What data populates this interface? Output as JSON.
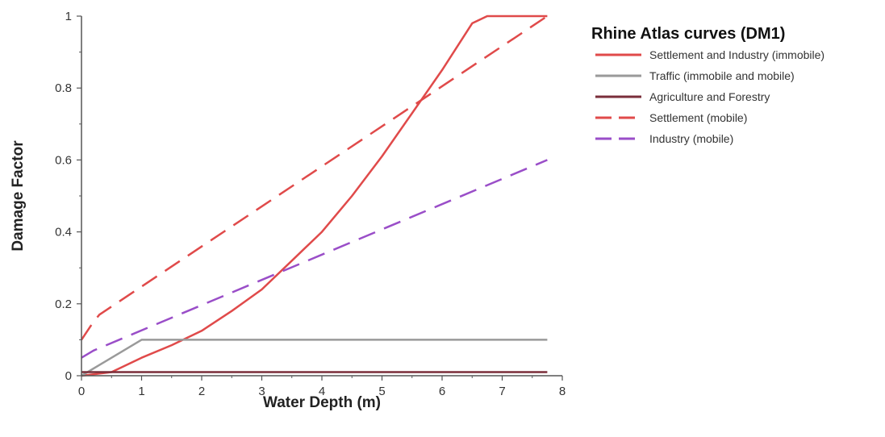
{
  "chart_data": {
    "type": "line",
    "title": "",
    "xlabel": "Water Depth (m)",
    "ylabel": "Damage Factor",
    "xlim": [
      0,
      8
    ],
    "ylim": [
      0,
      1
    ],
    "xticks": [
      "0",
      "1",
      "2",
      "3",
      "4",
      "5",
      "6",
      "7",
      "8"
    ],
    "yticks": [
      "0",
      "0.2",
      "0.4",
      "0.6",
      "0.8",
      "1"
    ],
    "grid": false,
    "legend": {
      "title": "Rhine Atlas curves (DM1)",
      "position": "top-right"
    },
    "series": [
      {
        "name": "Settlement and Industry (immobile)",
        "color": "#e04a4a",
        "dash": "solid",
        "x": [
          0,
          0.5,
          1,
          1.5,
          2,
          2.5,
          3,
          3.5,
          4,
          4.5,
          5,
          5.5,
          6,
          6.5,
          6.75,
          7.75
        ],
        "y": [
          0,
          0.01,
          0.05,
          0.085,
          0.125,
          0.18,
          0.24,
          0.32,
          0.4,
          0.5,
          0.61,
          0.73,
          0.85,
          0.98,
          1.0,
          1.0
        ]
      },
      {
        "name": "Traffic (immobile and mobile)",
        "color": "#9a9a9a",
        "dash": "solid",
        "x": [
          0,
          1,
          7.75
        ],
        "y": [
          0,
          0.1,
          0.1
        ]
      },
      {
        "name": "Agriculture and Forestry",
        "color": "#7a2e3a",
        "dash": "solid",
        "x": [
          0,
          7.75
        ],
        "y": [
          0.01,
          0.01
        ]
      },
      {
        "name": "Settlement (mobile)",
        "color": "#e04a4a",
        "dash": "dashed",
        "x": [
          0,
          0.2,
          0.3,
          7.75
        ],
        "y": [
          0.1,
          0.15,
          0.17,
          1.0
        ]
      },
      {
        "name": "Industry (mobile)",
        "color": "#9a4ec8",
        "dash": "dashed",
        "x": [
          0,
          0.2,
          7.75
        ],
        "y": [
          0.05,
          0.07,
          0.6
        ]
      }
    ]
  }
}
